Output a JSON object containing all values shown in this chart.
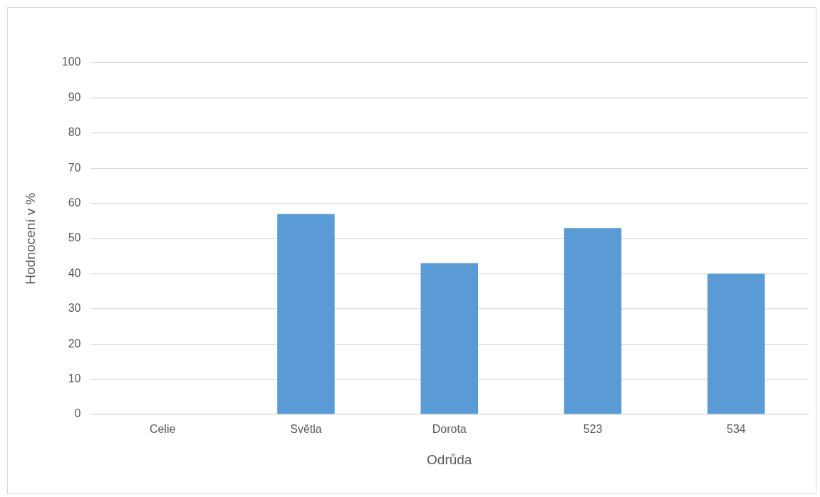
{
  "chart_data": {
    "type": "bar",
    "xlabel": "Odrůda",
    "ylabel": "Hodnocení v %",
    "categories": [
      "Celie",
      "Světla",
      "Dorota",
      "523",
      "534"
    ],
    "values": [
      0,
      57,
      43,
      53,
      40
    ],
    "color": "#5b9bd5",
    "ylim": [
      0,
      100
    ],
    "yticks": [
      0,
      10,
      20,
      30,
      40,
      50,
      60,
      70,
      80,
      90,
      100
    ],
    "grid": "y",
    "legend": false
  }
}
